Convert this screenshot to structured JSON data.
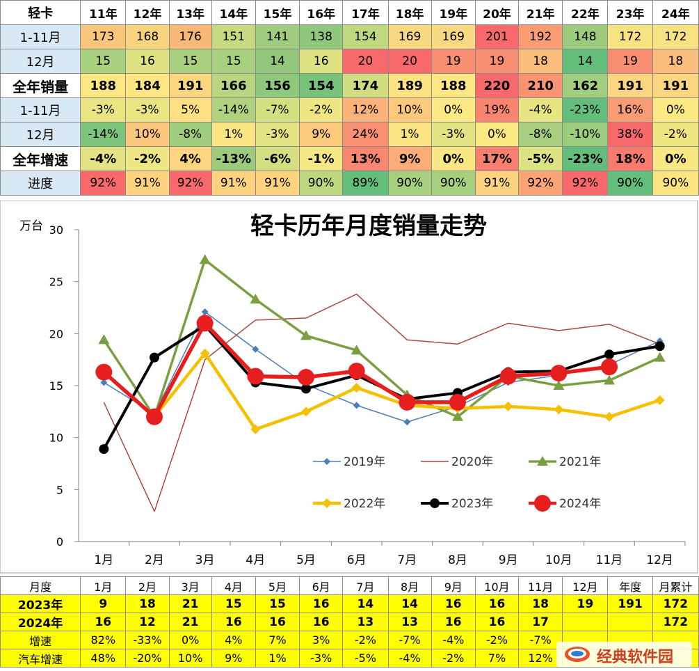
{
  "top_table": {
    "header": [
      "轻卡",
      "11年",
      "12年",
      "13年",
      "14年",
      "15年",
      "16年",
      "17年",
      "18年",
      "19年",
      "20年",
      "21年",
      "22年",
      "23年",
      "24年"
    ],
    "rows": [
      {
        "label": "1-11月",
        "bold": false,
        "cells": [
          "173",
          "168",
          "176",
          "151",
          "141",
          "138",
          "154",
          "169",
          "169",
          "201",
          "192",
          "148",
          "172",
          "172"
        ],
        "colors": [
          "#f9c77c",
          "#f9d47f",
          "#f8b878",
          "#c6da80",
          "#9fcc7e",
          "#8fc77d",
          "#c0d880",
          "#f8d880",
          "#f8d880",
          "#f8696b",
          "#f99c74",
          "#9ccb7e",
          "#f8e383",
          "#f8e383"
        ]
      },
      {
        "label": "12月",
        "bold": false,
        "cells": [
          "15",
          "16",
          "15",
          "15",
          "14",
          "16",
          "20",
          "20",
          "19",
          "19",
          "18",
          "14",
          "19",
          "18"
        ],
        "colors": [
          "#a9d07f",
          "#dfe283",
          "#a9d07f",
          "#a9d07f",
          "#92c77d",
          "#dfe283",
          "#f8696b",
          "#f8696b",
          "#f98f72",
          "#f98f72",
          "#fbbd7b",
          "#63be7b",
          "#f98f72",
          "#fbbd7b"
        ]
      },
      {
        "label": "全年销量",
        "bold": true,
        "cells": [
          "188",
          "184",
          "191",
          "166",
          "156",
          "154",
          "174",
          "189",
          "188",
          "220",
          "210",
          "162",
          "191",
          "191"
        ],
        "colors": [
          "#fde783",
          "#fee683",
          "#fcd580",
          "#b9d580",
          "#8ec87d",
          "#78c27c",
          "#d0dd81",
          "#fde283",
          "#fde783",
          "#f8696b",
          "#fa9473",
          "#a1ce7f",
          "#fcd580",
          "#fcd580"
        ]
      },
      {
        "label": "1-11月",
        "bold": false,
        "cells": [
          "-3%",
          "-3%",
          "5%",
          "-14%",
          "-7%",
          "-2%",
          "12%",
          "10%",
          "0%",
          "19%",
          "-4%",
          "-23%",
          "16%",
          "0%"
        ],
        "colors": [
          "#eae583",
          "#eae583",
          "#fedf82",
          "#b0d27f",
          "#d5df82",
          "#eee583",
          "#fbb379",
          "#fdc97d",
          "#fbe984",
          "#f98570",
          "#e6e483",
          "#63be7b",
          "#f99c74",
          "#fbe984"
        ]
      },
      {
        "label": "12月",
        "bold": false,
        "cells": [
          "-14%",
          "10%",
          "-8%",
          "1%",
          "-3%",
          "9%",
          "24%",
          "1%",
          "-3%",
          "0%",
          "-8%",
          "-10%",
          "38%",
          "-2%"
        ],
        "colors": [
          "#7dc47c",
          "#fcc77c",
          "#a1cd7f",
          "#fbe483",
          "#e2e383",
          "#fcc97d",
          "#f99072",
          "#fbe483",
          "#e2e383",
          "#fbe984",
          "#a8cf7f",
          "#9ccc7e",
          "#f8696b",
          "#eee583"
        ]
      },
      {
        "label": "全年增速",
        "bold": true,
        "cells": [
          "-4%",
          "-2%",
          "4%",
          "-13%",
          "-6%",
          "-1%",
          "13%",
          "9%",
          "0%",
          "17%",
          "-5%",
          "-23%",
          "18%",
          "0%"
        ],
        "colors": [
          "#e3e383",
          "#eee583",
          "#fed581",
          "#9ccb7e",
          "#d5df82",
          "#f4e784",
          "#f98670",
          "#fbad78",
          "#f8e883",
          "#f97f6f",
          "#ddE282",
          "#63be7b",
          "#f97b6e",
          "#f8e883"
        ]
      },
      {
        "label": "进度",
        "bold": false,
        "cells": [
          "92%",
          "91%",
          "92%",
          "91%",
          "91%",
          "90%",
          "89%",
          "90%",
          "90%",
          "91%",
          "92%",
          "92%",
          "90%",
          "90%"
        ],
        "colors": [
          "#f8696b",
          "#fed380",
          "#f8696b",
          "#fed380",
          "#fed380",
          "#bcd780",
          "#63be7b",
          "#a6cf7f",
          "#a6cf7f",
          "#fed380",
          "#fba476",
          "#f8696b",
          "#63be7b",
          "#fce482"
        ]
      }
    ]
  },
  "chart_data": {
    "type": "line",
    "title": "轻卡历年月度销量走势",
    "ylabel": "万台",
    "ylim": [
      0,
      30
    ],
    "yticks": [
      0,
      5,
      10,
      15,
      20,
      25,
      30
    ],
    "categories": [
      "1月",
      "2月",
      "3月",
      "4月",
      "5月",
      "6月",
      "7月",
      "8月",
      "9月",
      "10月",
      "11月",
      "12月"
    ],
    "series": [
      {
        "name": "2019年",
        "color": "#4a7ebb",
        "marker": "diamond",
        "width": 1.5,
        "values": [
          15.3,
          12.3,
          22.1,
          18.5,
          15.1,
          13.1,
          11.5,
          13.0,
          15.3,
          16.0,
          17.0,
          19.3
        ]
      },
      {
        "name": "2020年",
        "color": "#a84a3c",
        "marker": "none",
        "width": 1.5,
        "values": [
          13.4,
          2.9,
          17.5,
          21.3,
          21.5,
          23.8,
          19.4,
          19.0,
          21.0,
          20.3,
          20.9,
          19.0
        ]
      },
      {
        "name": "2021年",
        "color": "#7a9f40",
        "marker": "triangle",
        "width": 3.5,
        "values": [
          19.4,
          12.0,
          27.1,
          23.3,
          19.8,
          18.4,
          14.1,
          12.0,
          15.9,
          15.0,
          15.5,
          17.7
        ]
      },
      {
        "name": "2022年",
        "color": "#f5c000",
        "marker": "diamond",
        "width": 4.5,
        "values": [
          16.3,
          12.0,
          18.1,
          10.8,
          12.5,
          14.8,
          13.1,
          12.8,
          13.0,
          12.7,
          12.0,
          13.6
        ]
      },
      {
        "name": "2023年",
        "color": "#000000",
        "marker": "circle",
        "width": 4,
        "values": [
          8.9,
          17.7,
          20.8,
          15.3,
          14.7,
          16.0,
          13.7,
          14.3,
          16.3,
          16.4,
          18.0,
          18.8
        ]
      },
      {
        "name": "2024年",
        "color": "#e61e1e",
        "marker": "bigcircle",
        "width": 5.5,
        "values": [
          16.3,
          12.0,
          21.0,
          15.9,
          15.8,
          16.4,
          13.4,
          13.4,
          15.9,
          16.2,
          16.8,
          null
        ]
      }
    ]
  },
  "bottom_table": {
    "header": [
      "月度",
      "1月",
      "2月",
      "3月",
      "4月",
      "5月",
      "6月",
      "7月",
      "8月",
      "9月",
      "10月",
      "11月",
      "12月",
      "年度",
      "月累计"
    ],
    "rows": [
      {
        "label": "2023年",
        "bold": true,
        "cells": [
          "9",
          "18",
          "21",
          "15",
          "15",
          "16",
          "14",
          "14",
          "16",
          "16",
          "18",
          "19",
          "191",
          "172"
        ]
      },
      {
        "label": "2024年",
        "bold": true,
        "cells": [
          "16",
          "12",
          "21",
          "16",
          "16",
          "16",
          "13",
          "13",
          "16",
          "16",
          "17",
          "",
          "",
          "172"
        ]
      },
      {
        "label": "增速",
        "bold": false,
        "cells": [
          "82%",
          "-33%",
          "0%",
          "4%",
          "7%",
          "3%",
          "-2%",
          "-7%",
          "-4%",
          "-2%",
          "-7%",
          "",
          "",
          ""
        ]
      },
      {
        "label": "汽车增速",
        "bold": false,
        "cells": [
          "48%",
          "-20%",
          "10%",
          "9%",
          "1%",
          "-3%",
          "-5%",
          "-4%",
          "-2%",
          "7%",
          "12%",
          "",
          "",
          ""
        ]
      }
    ]
  },
  "watermark": {
    "text": "经典软件园",
    "icon": "cloud-logo-icon"
  }
}
